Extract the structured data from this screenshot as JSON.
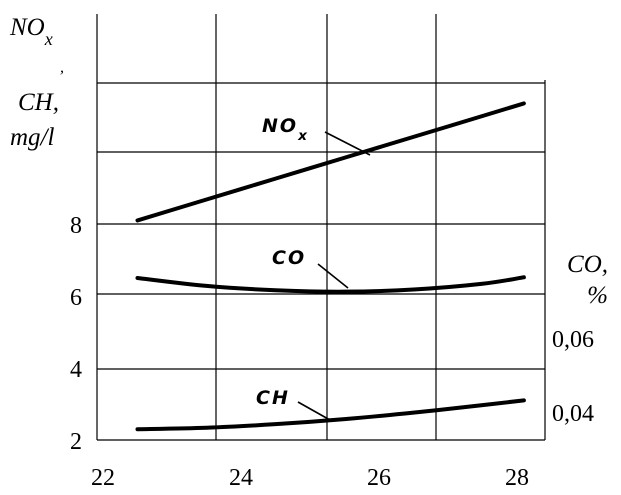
{
  "chart_data": {
    "type": "line",
    "left_axis": {
      "title_lines": [
        "NOx",
        ",",
        "CH,",
        "mg/l"
      ],
      "ticks": [
        "2",
        "4",
        "6",
        "8"
      ],
      "tick_values": [
        2,
        4,
        6,
        8
      ]
    },
    "right_axis": {
      "title_lines": [
        "CO,",
        "%"
      ],
      "ticks": [
        "0,04",
        "0,06"
      ],
      "tick_values": [
        0.04,
        0.06
      ]
    },
    "x_axis": {
      "ticks": [
        "22",
        "24",
        "26",
        "28"
      ],
      "tick_values": [
        22,
        24,
        26,
        28
      ]
    },
    "xlim": [
      21.5,
      28.5
    ],
    "ylim": [
      2,
      12
    ],
    "grid": true,
    "series": [
      {
        "name": "NOx",
        "label": "NOx",
        "x": [
          22.5,
          23.5,
          24.5,
          25.5,
          26.5,
          27.5,
          28.1
        ],
        "y": [
          8.1,
          8.68,
          9.26,
          9.84,
          10.42,
          11.0,
          11.35
        ]
      },
      {
        "name": "CO",
        "label": "CO",
        "x": [
          22.5,
          23.5,
          24.5,
          25.5,
          26.5,
          27.5,
          28.1
        ],
        "y": [
          6.5,
          6.28,
          6.16,
          6.12,
          6.18,
          6.34,
          6.52
        ]
      },
      {
        "name": "CH",
        "label": "CH",
        "x": [
          22.5,
          23.5,
          24.5,
          25.5,
          26.5,
          27.5,
          28.1
        ],
        "y": [
          2.3,
          2.34,
          2.44,
          2.58,
          2.76,
          2.97,
          3.1
        ]
      }
    ]
  }
}
